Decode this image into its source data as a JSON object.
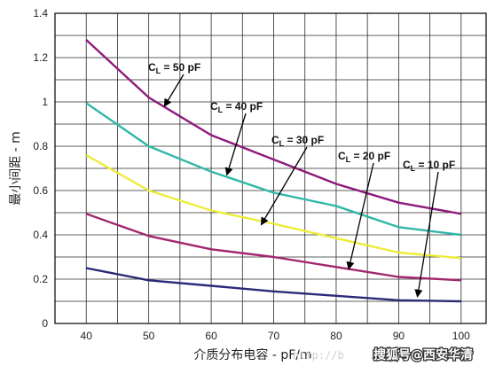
{
  "chart_data": {
    "type": "line",
    "title": "",
    "xlabel": "介质分布电容 - pF/m",
    "ylabel": "最小间距 - m",
    "xlim": [
      35,
      104
    ],
    "ylim": [
      0,
      1.4
    ],
    "xticks": [
      40,
      50,
      60,
      70,
      80,
      90,
      100
    ],
    "yticks": [
      0,
      0.2,
      0.4,
      0.6,
      0.8,
      1.0,
      1.2,
      1.4
    ],
    "ytick_labels": [
      "0",
      "0.2",
      "0.4",
      "0.6",
      "0.8",
      "1",
      "1.2",
      "1.4"
    ],
    "x_grid": [
      40,
      45,
      50,
      55,
      60,
      65,
      70,
      75,
      80,
      85,
      90,
      95,
      100
    ],
    "y_grid": [
      0.1,
      0.2,
      0.3,
      0.4,
      0.5,
      0.6,
      0.7,
      0.8,
      0.9,
      1.0,
      1.1,
      1.2,
      1.3
    ],
    "grid": true,
    "series": [
      {
        "label_main": "C",
        "label_sub": "L",
        "label_rest": " = 50 pF",
        "color": "#8e1a7c",
        "x": [
          40,
          50,
          60,
          70,
          80,
          90,
          100
        ],
        "y": [
          1.28,
          1.02,
          0.85,
          0.74,
          0.63,
          0.545,
          0.495
        ],
        "arrow_to": [
          52.5,
          0.98
        ]
      },
      {
        "label_main": "C",
        "label_sub": "L",
        "label_rest": " = 40 pF",
        "color": "#2fb7a8",
        "x": [
          40,
          50,
          60,
          70,
          80,
          90,
          100
        ],
        "y": [
          0.995,
          0.8,
          0.685,
          0.59,
          0.53,
          0.435,
          0.4
        ],
        "arrow_to": [
          62.5,
          0.67
        ]
      },
      {
        "label_main": "C",
        "label_sub": "L",
        "label_rest": " = 30 pF",
        "color": "#ecec3a",
        "x": [
          40,
          50,
          60,
          70,
          80,
          90,
          100
        ],
        "y": [
          0.76,
          0.6,
          0.51,
          0.45,
          0.385,
          0.32,
          0.295
        ],
        "arrow_to": [
          68,
          0.445
        ]
      },
      {
        "label_main": "C",
        "label_sub": "L",
        "label_rest": " = 20 pF",
        "color": "#a3266f",
        "x": [
          40,
          50,
          60,
          70,
          80,
          90,
          100
        ],
        "y": [
          0.495,
          0.395,
          0.335,
          0.3,
          0.255,
          0.21,
          0.195
        ],
        "arrow_to": [
          82,
          0.245
        ]
      },
      {
        "label_main": "C",
        "label_sub": "L",
        "label_rest": " = 10 pF",
        "color": "#2a2a78",
        "x": [
          40,
          50,
          60,
          70,
          80,
          90,
          100
        ],
        "y": [
          0.25,
          0.195,
          0.17,
          0.145,
          0.125,
          0.105,
          0.1
        ],
        "arrow_to": [
          93,
          0.12
        ]
      }
    ]
  },
  "watermark": {
    "text": "搜狐号@西安华清",
    "faint_text": "http://b"
  }
}
